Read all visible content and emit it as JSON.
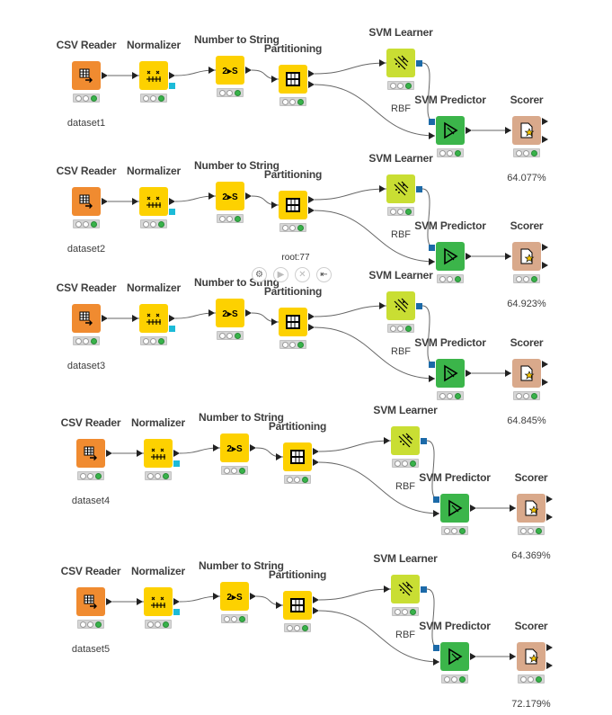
{
  "workflow": {
    "pipelines": [
      {
        "nodes": {
          "csv_reader": {
            "title": "CSV Reader",
            "label": "dataset1"
          },
          "normalizer": {
            "title": "Normalizer"
          },
          "number_to_string": {
            "title": "Number to String",
            "icon_text": "2▸S"
          },
          "partitioning": {
            "title": "Partitioning"
          },
          "svm_learner": {
            "title": "SVM Learner",
            "label": "RBF"
          },
          "svm_predictor": {
            "title": "SVM Predictor"
          },
          "scorer": {
            "title": "Scorer",
            "label": "64.077%"
          }
        }
      },
      {
        "nodes": {
          "csv_reader": {
            "title": "CSV Reader",
            "label": "dataset2"
          },
          "normalizer": {
            "title": "Normalizer"
          },
          "number_to_string": {
            "title": "Number to String",
            "icon_text": "2▸S"
          },
          "partitioning": {
            "title": "Partitioning"
          },
          "svm_learner": {
            "title": "SVM Learner",
            "label": "RBF"
          },
          "svm_predictor": {
            "title": "SVM Predictor"
          },
          "scorer": {
            "title": "Scorer",
            "label": "64.923%"
          }
        }
      },
      {
        "nodes": {
          "csv_reader": {
            "title": "CSV Reader",
            "label": "dataset3"
          },
          "normalizer": {
            "title": "Normalizer"
          },
          "number_to_string": {
            "title": "Number to String",
            "icon_text": "2▸S"
          },
          "partitioning": {
            "title": "Partitioning"
          },
          "svm_learner": {
            "title": "SVM Learner",
            "label": "RBF"
          },
          "svm_predictor": {
            "title": "SVM Predictor"
          },
          "scorer": {
            "title": "Scorer",
            "label": "64.845%"
          }
        }
      },
      {
        "nodes": {
          "csv_reader": {
            "title": "CSV Reader",
            "label": "dataset4"
          },
          "normalizer": {
            "title": "Normalizer"
          },
          "number_to_string": {
            "title": "Number to String",
            "icon_text": "2▸S"
          },
          "partitioning": {
            "title": "Partitioning"
          },
          "svm_learner": {
            "title": "SVM Learner",
            "label": "RBF"
          },
          "svm_predictor": {
            "title": "SVM Predictor"
          },
          "scorer": {
            "title": "Scorer",
            "label": "64.369%"
          }
        }
      },
      {
        "nodes": {
          "csv_reader": {
            "title": "CSV Reader",
            "label": "dataset5"
          },
          "normalizer": {
            "title": "Normalizer"
          },
          "number_to_string": {
            "title": "Number to String",
            "icon_text": "2▸S"
          },
          "partitioning": {
            "title": "Partitioning"
          },
          "svm_learner": {
            "title": "SVM Learner",
            "label": "RBF"
          },
          "svm_predictor": {
            "title": "SVM Predictor"
          },
          "scorer": {
            "title": "Scorer",
            "label": "72.179%"
          }
        }
      }
    ]
  },
  "action_bar": {
    "node_id": "root:77",
    "buttons": [
      "gear-icon",
      "play-icon",
      "cancel-icon",
      "reset-icon"
    ]
  },
  "colors": {
    "csv_reader": "#f08b30",
    "normalizer": "#fdd100",
    "number_to_string": "#fdd100",
    "partitioning": "#fdd100",
    "svm_learner": "#c9de33",
    "svm_predictor": "#3bb54a",
    "scorer": "#d9a98b",
    "model_port": "#1c6aa8",
    "normalizer_port": "#1cbbd8",
    "status_ok": "#38b34a"
  }
}
